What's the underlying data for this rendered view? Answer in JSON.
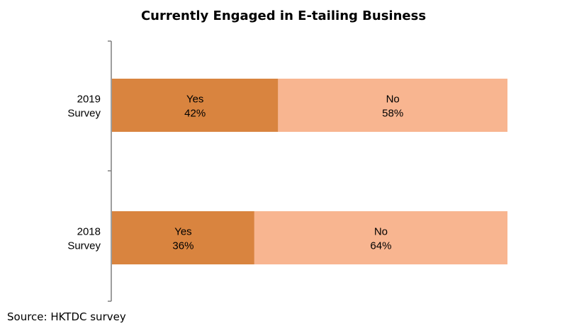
{
  "chart_data": {
    "type": "bar",
    "orientation": "horizontal",
    "stacked": true,
    "percent_stacked": true,
    "title": "Currently Engaged in E-tailing Business",
    "categories": [
      [
        "2019",
        "Survey"
      ],
      [
        "2018",
        "Survey"
      ]
    ],
    "series": [
      {
        "name": "Yes",
        "values": [
          42,
          36
        ],
        "color": "#d9843f"
      },
      {
        "name": "No",
        "values": [
          58,
          64
        ],
        "color": "#f8b590"
      }
    ],
    "data_labels": [
      {
        "category": "2019 Survey",
        "labels": [
          [
            "Yes",
            "42%"
          ],
          [
            "No",
            "58%"
          ]
        ]
      },
      {
        "category": "2018 Survey",
        "labels": [
          [
            "Yes",
            "36%"
          ],
          [
            "No",
            "64%"
          ]
        ]
      }
    ],
    "xlim": [
      0,
      100
    ],
    "unit": "%",
    "grid": false,
    "legend": "none",
    "axis_color": "#7f7f7f"
  },
  "footer": {
    "source": "Source: HKTDC survey"
  }
}
